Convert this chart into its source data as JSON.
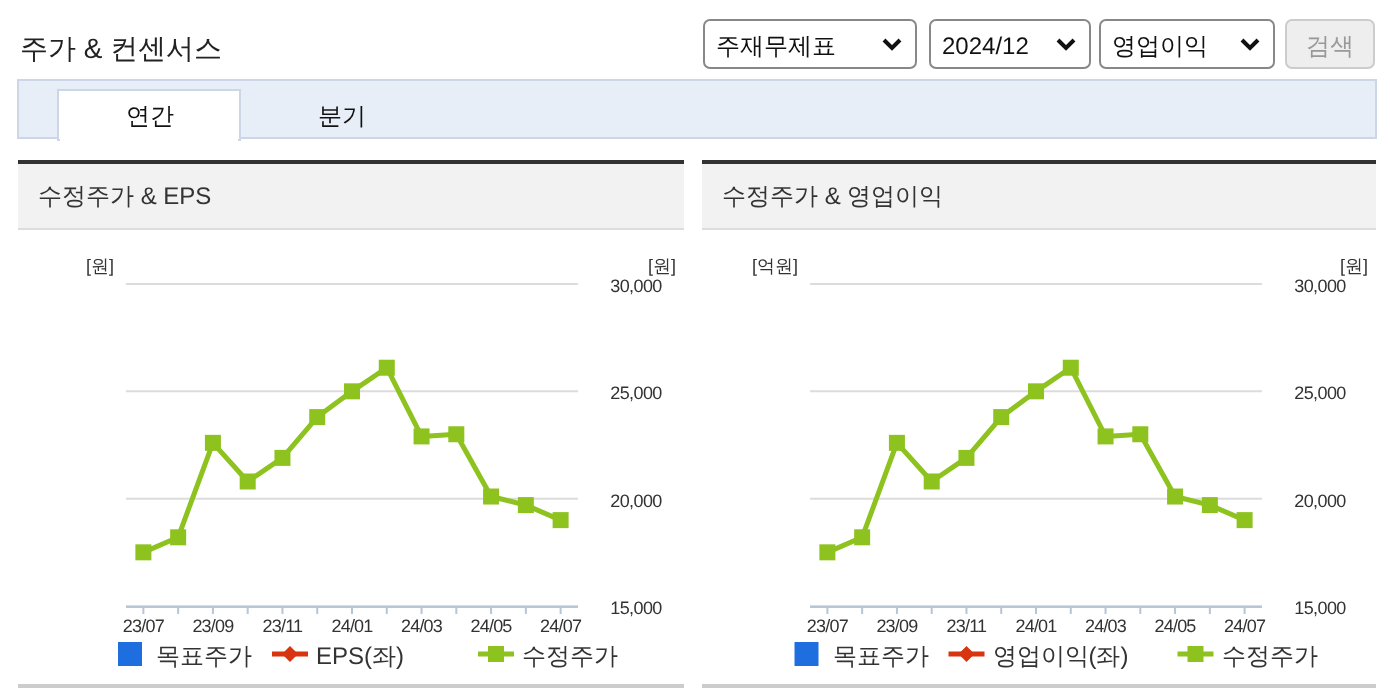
{
  "chart_data": [
    {
      "type": "line",
      "title": "수정주가 & EPS",
      "ylabel": "[원]",
      "y2label": "[원]",
      "annotations": [
        "주가 & 컨센서스",
        "주재무제표",
        "2024/12",
        "영업이익",
        "검색",
        "연간",
        "분기"
      ],
      "categories": [
        "23/07",
        null,
        "23/09",
        null,
        "23/11",
        null,
        "24/01",
        null,
        "24/03",
        null,
        "24/05",
        null,
        "24/07"
      ],
      "series": [
        {
          "name": "목표주가",
          "type": "bar",
          "color": "#1f6ee0",
          "values": [
            null,
            null,
            null,
            null,
            null,
            null,
            null,
            null,
            null,
            null,
            null,
            null,
            null
          ]
        },
        {
          "name": "EPS(좌)",
          "marker": "diamond",
          "color": "#d7340f",
          "values": [
            null,
            null,
            null,
            null,
            null,
            null,
            null,
            null,
            null,
            null,
            null,
            null,
            null
          ]
        },
        {
          "name": "수정주가",
          "marker": "square",
          "axis": "y2",
          "color": "#8dc21f",
          "values": [
            17500,
            18200,
            22600,
            20800,
            21900,
            23800,
            25000,
            26100,
            22900,
            23000,
            20100,
            19700,
            19000
          ]
        }
      ],
      "y2lim": [
        15000,
        30000
      ],
      "y2ticks": [
        {
          "value": 15000,
          "label": "15,000"
        },
        {
          "value": 20000,
          "label": "20,000"
        },
        {
          "value": 25000,
          "label": "25,000"
        },
        {
          "value": 30000,
          "label": "30,000"
        }
      ],
      "grid": "y",
      "legend": "bottom"
    },
    {
      "type": "line",
      "title": "수정주가 & 영업이익",
      "ylabel": "[억원]",
      "y2label": "[원]",
      "categories": [
        "23/07",
        null,
        "23/09",
        null,
        "23/11",
        null,
        "24/01",
        null,
        "24/03",
        null,
        "24/05",
        null,
        "24/07"
      ],
      "series": [
        {
          "name": "목표주가",
          "type": "bar",
          "color": "#1f6ee0",
          "values": [
            null,
            null,
            null,
            null,
            null,
            null,
            null,
            null,
            null,
            null,
            null,
            null,
            null
          ]
        },
        {
          "name": "영업이익(좌)",
          "marker": "diamond",
          "color": "#d7340f",
          "values": [
            null,
            null,
            null,
            null,
            null,
            null,
            null,
            null,
            null,
            null,
            null,
            null,
            null
          ]
        },
        {
          "name": "수정주가",
          "marker": "square",
          "axis": "y2",
          "color": "#8dc21f",
          "values": [
            17500,
            18200,
            22600,
            20800,
            21900,
            23800,
            25000,
            26100,
            22900,
            23000,
            20100,
            19700,
            19000
          ]
        }
      ],
      "y2lim": [
        15000,
        30000
      ],
      "y2ticks": [
        {
          "value": 15000,
          "label": "15,000"
        },
        {
          "value": 20000,
          "label": "20,000"
        },
        {
          "value": 25000,
          "label": "25,000"
        },
        {
          "value": 30000,
          "label": "30,000"
        }
      ],
      "grid": "y",
      "legend": "bottom"
    }
  ]
}
